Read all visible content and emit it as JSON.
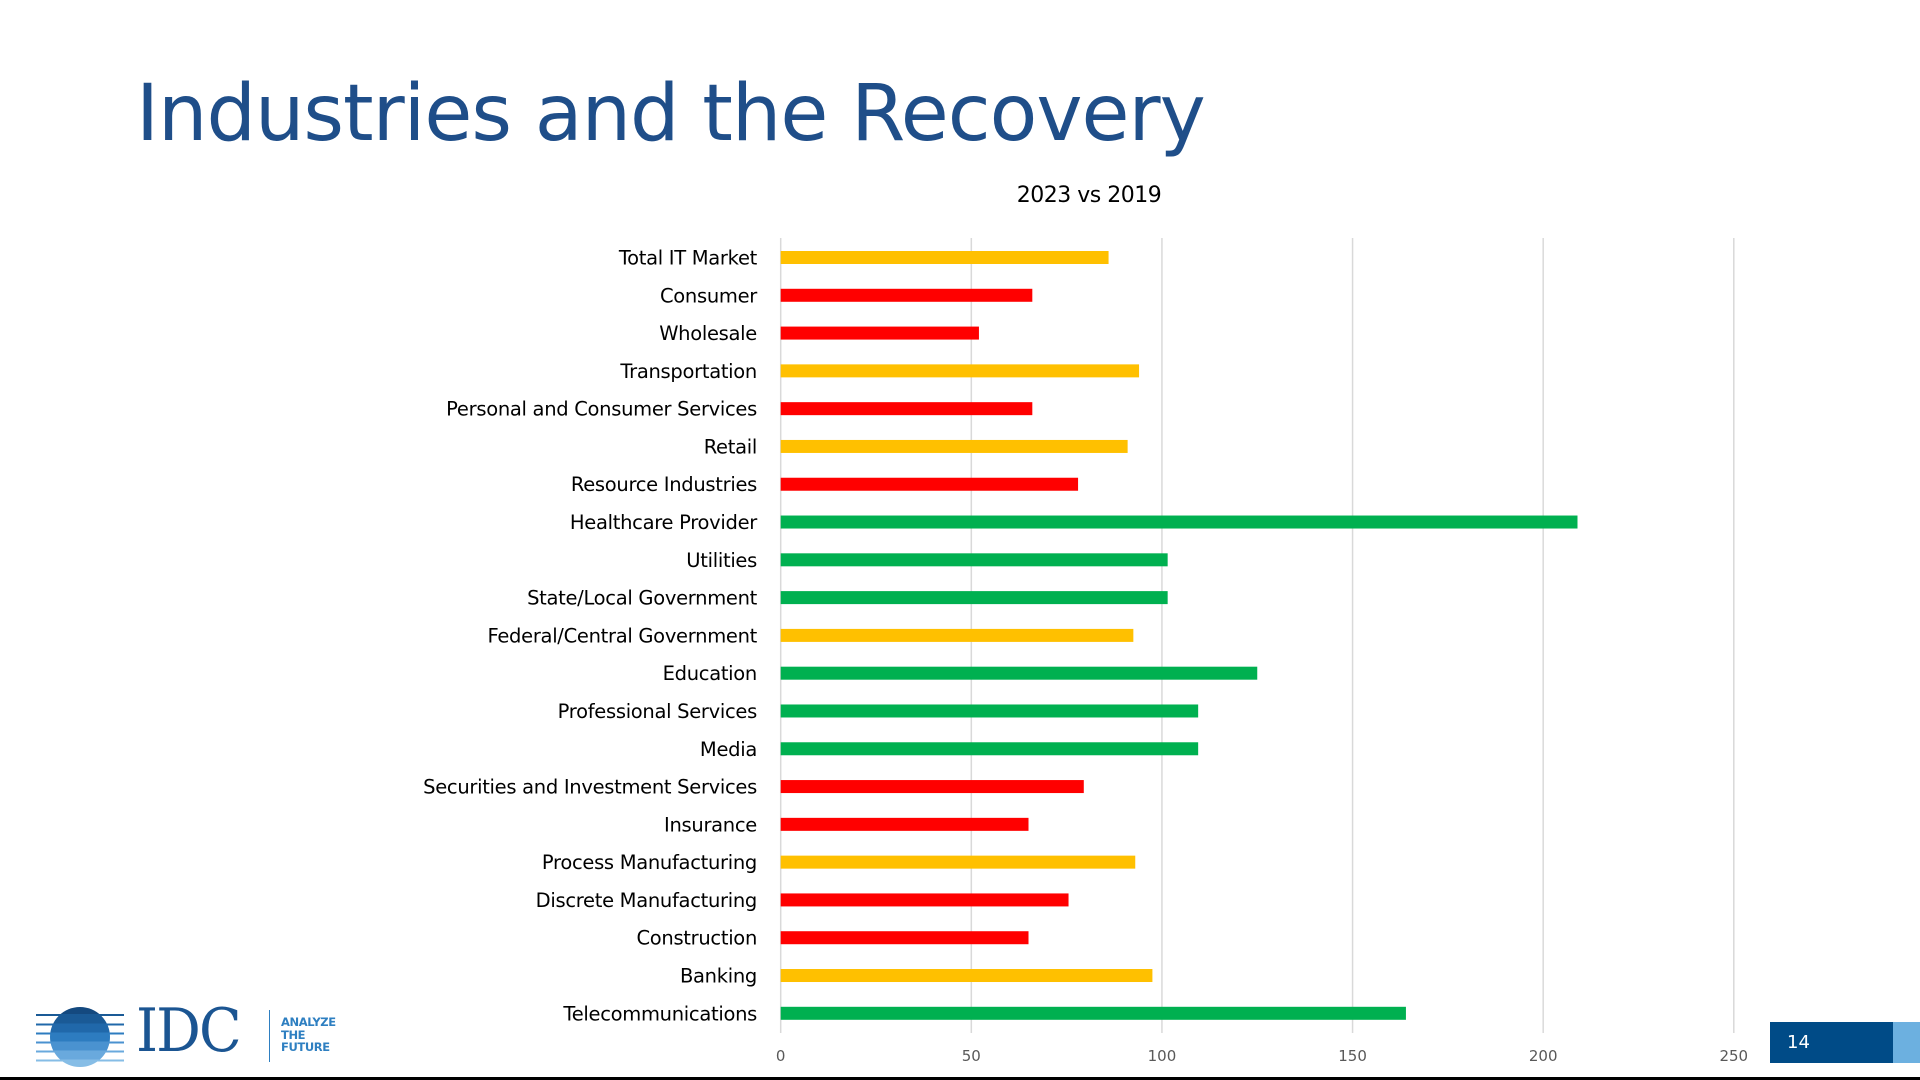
{
  "slide": {
    "title": "Industries and the Recovery",
    "page_number": "14"
  },
  "logo": {
    "brand": "IDC",
    "tagline": [
      "ANALYZE",
      "THE",
      "FUTURE"
    ]
  },
  "colors": {
    "title": "#1f4e89",
    "above": "#00B050",
    "near": "#FFC000",
    "below": "#FF0000",
    "gridline": "#d9d9d9",
    "page_box": "#004b87",
    "page_accent": "#6cb0e0"
  },
  "chart_data": {
    "type": "bar",
    "orientation": "horizontal",
    "title": "2023 vs 2019",
    "xlabel": "",
    "ylabel": "",
    "xlim": [
      0,
      250
    ],
    "xticks": [
      0,
      50,
      100,
      150,
      200,
      250
    ],
    "grid": true,
    "legend": "none",
    "categories": [
      "Total IT Market",
      "Consumer",
      "Wholesale",
      "Transportation",
      "Personal and Consumer Services",
      "Retail",
      "Resource Industries",
      "Healthcare Provider",
      "Utilities",
      "State/Local Government",
      "Federal/Central Government",
      "Education",
      "Professional Services",
      "Media",
      "Securities and Investment Services",
      "Insurance",
      "Process Manufacturing",
      "Discrete Manufacturing",
      "Construction",
      "Banking",
      "Telecommunications"
    ],
    "values": [
      86,
      66,
      52,
      94,
      66,
      91,
      78,
      209,
      101.5,
      101.5,
      92.5,
      125,
      109.5,
      109.5,
      79.5,
      65,
      93,
      75.5,
      65,
      97.5,
      164
    ],
    "bar_colors": [
      "near",
      "below",
      "below",
      "near",
      "below",
      "near",
      "below",
      "above",
      "above",
      "above",
      "near",
      "above",
      "above",
      "above",
      "below",
      "below",
      "near",
      "below",
      "below",
      "near",
      "above"
    ]
  }
}
